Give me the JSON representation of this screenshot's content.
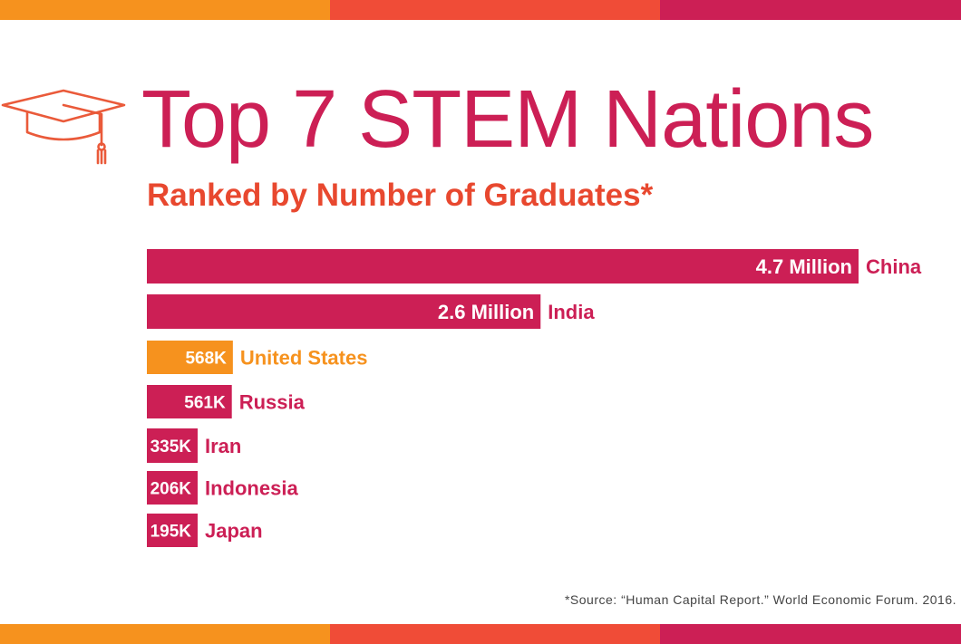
{
  "title": "Top 7 STEM Nations",
  "subtitle": "Ranked by Number of Graduates*",
  "source": "*Source: “Human Capital Report.” World Economic Forum. 2016.",
  "icon": "graduation-cap-icon",
  "colors": {
    "title": "#cc1f55",
    "subtitle": "#e8482f",
    "icon": "#ea5a3a",
    "bar": "#cc1f55",
    "highlight": "#f6921e",
    "value_text": "#ffffff",
    "stripe": [
      "#f6921e",
      "#f04c37",
      "#cc1f55"
    ]
  },
  "chart_data": {
    "type": "bar",
    "orientation": "horizontal",
    "title": "Top 7 STEM Nations",
    "subtitle": "Ranked by Number of Graduates*",
    "unit": "graduates",
    "grid": false,
    "categories": [
      "China",
      "India",
      "United States",
      "Russia",
      "Iran",
      "Indonesia",
      "Japan"
    ],
    "values": [
      4700000,
      2600000,
      568000,
      561000,
      335000,
      206000,
      195000
    ],
    "value_labels": [
      "4.7 Million",
      "2.6 Million",
      "568K",
      "561K",
      "335K",
      "206K",
      "195K"
    ],
    "highlight": "United States"
  }
}
